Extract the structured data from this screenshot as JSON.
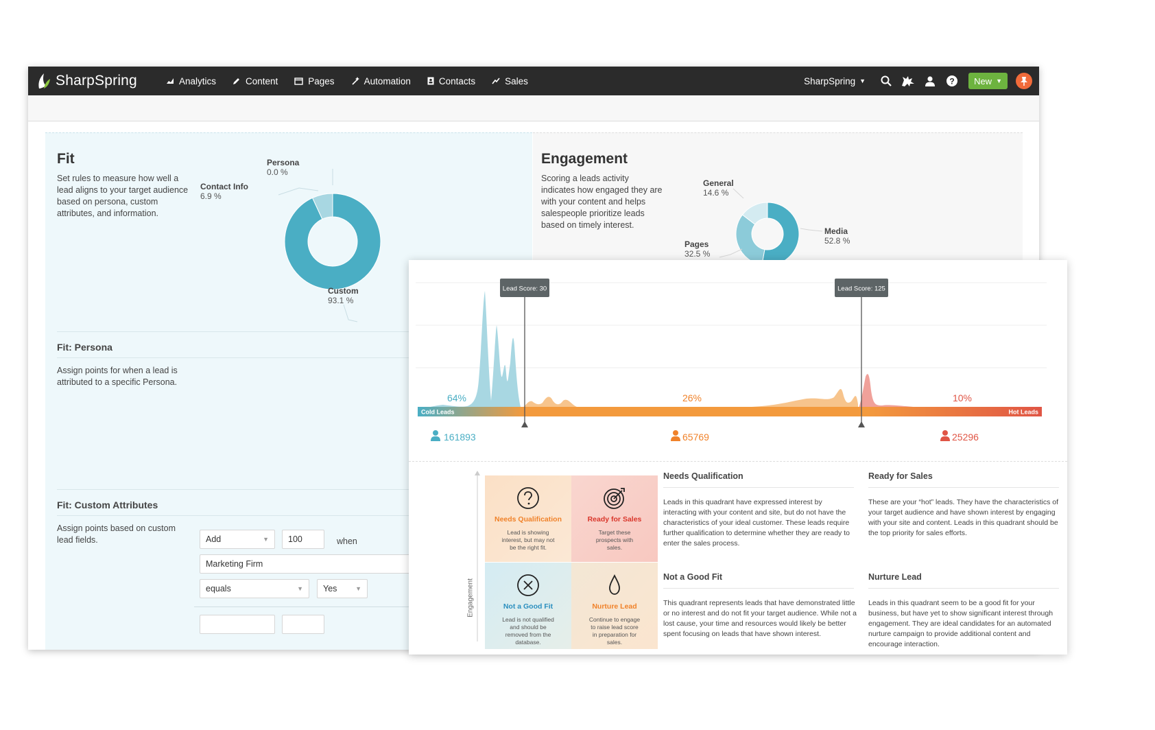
{
  "app": {
    "logo_text": "SharpSpring",
    "nav": [
      {
        "label": "Analytics",
        "icon": "chart-line-icon"
      },
      {
        "label": "Content",
        "icon": "pencil-icon"
      },
      {
        "label": "Pages",
        "icon": "window-icon"
      },
      {
        "label": "Automation",
        "icon": "wand-icon"
      },
      {
        "label": "Contacts",
        "icon": "contact-card-icon"
      },
      {
        "label": "Sales",
        "icon": "trend-icon"
      }
    ],
    "account_label": "SharpSpring",
    "new_label": "New",
    "colors": {
      "topbar": "#2b2b2b",
      "new_button": "#6db33f",
      "pin_button": "#f26b3a",
      "teal": "#4aaec4",
      "orange": "#f39a3d",
      "red": "#e05545"
    }
  },
  "fit": {
    "title": "Fit",
    "description": "Set rules to measure how well a lead aligns to your target audience based on persona, custom attributes, and information.",
    "donut": [
      {
        "name": "Custom",
        "percent": 93.1,
        "label": "93.1 %"
      },
      {
        "name": "Contact Info",
        "percent": 6.9,
        "label": "6.9 %"
      },
      {
        "name": "Persona",
        "percent": 0.0,
        "label": "0.0 %"
      }
    ],
    "persona_title": "Fit: Persona",
    "persona_desc": "Assign points for when a lead is attributed to a specific Persona.",
    "custom_title": "Fit: Custom Attributes",
    "custom_desc": "Assign points based on custom lead fields.",
    "rule": {
      "action": "Add",
      "points": "100",
      "when": "when",
      "field": "Marketing Firm",
      "operator": "equals",
      "value": "Yes"
    }
  },
  "engagement": {
    "title": "Engagement",
    "description": "Scoring a leads activity indicates how engaged they are with your content and helps salespeople prioritize leads based on timely interest.",
    "donut": [
      {
        "name": "Media",
        "percent": 52.8,
        "label": "52.8 %"
      },
      {
        "name": "Pages",
        "percent": 32.5,
        "label": "32.5 %"
      },
      {
        "name": "General",
        "percent": 14.6,
        "label": "14.6 %"
      }
    ]
  },
  "distribution": {
    "markers": [
      {
        "label": "Lead Score: 30",
        "score": 30
      },
      {
        "label": "Lead Score: 125",
        "score": 125
      }
    ],
    "bar_left": "Cold Leads",
    "bar_right": "Hot Leads",
    "segments": [
      {
        "percent": "64%",
        "count": "161893",
        "color": "#4aaec4"
      },
      {
        "percent": "26%",
        "count": "65769",
        "color": "#f39a3d"
      },
      {
        "percent": "10%",
        "count": "25296",
        "color": "#e05545"
      }
    ]
  },
  "quadrant": {
    "axis_label": "Engagement",
    "cells": [
      {
        "title": "Needs Qualification",
        "desc": "Lead is showing interest, but may not be the right fit.",
        "icon": "question-circle-icon",
        "color": "#f0822a"
      },
      {
        "title": "Ready for Sales",
        "desc": "Target these prospects with sales.",
        "icon": "target-icon",
        "color": "#d9362b"
      },
      {
        "title": "Not a Good Fit",
        "desc": "Lead is not qualified and should be removed from the database.",
        "icon": "x-circle-icon",
        "color": "#2b8fbf"
      },
      {
        "title": "Nurture Lead",
        "desc": "Continue to engage to raise lead score in preparation for sales.",
        "icon": "droplet-icon",
        "color": "#f0822a"
      }
    ],
    "descriptions": [
      {
        "title": "Needs Qualification",
        "text": "Leads in this quadrant have expressed interest by interacting with your content and site, but do not have the characteristics of your ideal customer. These leads require further qualification to determine whether they are ready to enter the sales process."
      },
      {
        "title": "Ready for Sales",
        "text": "These are your “hot” leads. They have the characteristics of your target audience and have shown interest by engaging with your site and content. Leads in this quadrant should be the top priority for sales efforts."
      },
      {
        "title": "Not a Good Fit",
        "text": "This quadrant represents leads that have demonstrated little or no interest and do not fit your target audience. While not a lost cause, your time and resources would likely be better spent focusing on leads that have shown interest."
      },
      {
        "title": "Nurture Lead",
        "text": "Leads in this quadrant seem to be a good fit for your business, but have yet to show significant interest through engagement. They are ideal candidates for an automated nurture campaign to provide additional content and encourage interaction."
      }
    ]
  }
}
